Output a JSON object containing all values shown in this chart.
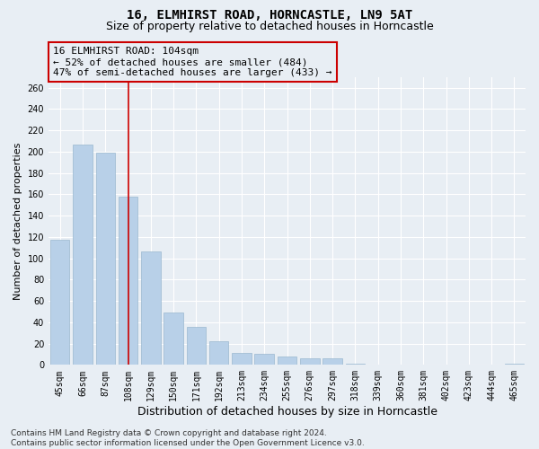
{
  "title": "16, ELMHIRST ROAD, HORNCASTLE, LN9 5AT",
  "subtitle": "Size of property relative to detached houses in Horncastle",
  "xlabel": "Distribution of detached houses by size in Horncastle",
  "ylabel": "Number of detached properties",
  "categories": [
    "45sqm",
    "66sqm",
    "87sqm",
    "108sqm",
    "129sqm",
    "150sqm",
    "171sqm",
    "192sqm",
    "213sqm",
    "234sqm",
    "255sqm",
    "276sqm",
    "297sqm",
    "318sqm",
    "339sqm",
    "360sqm",
    "381sqm",
    "402sqm",
    "423sqm",
    "444sqm",
    "465sqm"
  ],
  "values": [
    117,
    207,
    199,
    158,
    106,
    49,
    36,
    22,
    11,
    10,
    8,
    6,
    6,
    1,
    0,
    0,
    0,
    0,
    0,
    0,
    1
  ],
  "bar_color": "#b8d0e8",
  "bar_edgecolor": "#9ab8d0",
  "vline_index": 3,
  "vline_color": "#cc0000",
  "annotation_line1": "16 ELMHIRST ROAD: 104sqm",
  "annotation_line2": "← 52% of detached houses are smaller (484)",
  "annotation_line3": "47% of semi-detached houses are larger (433) →",
  "annotation_box_edgecolor": "#cc0000",
  "annotation_fontsize": 8,
  "ylim": [
    0,
    270
  ],
  "yticks": [
    0,
    20,
    40,
    60,
    80,
    100,
    120,
    140,
    160,
    180,
    200,
    220,
    240,
    260
  ],
  "footer_text": "Contains HM Land Registry data © Crown copyright and database right 2024.\nContains public sector information licensed under the Open Government Licence v3.0.",
  "background_color": "#e8eef4",
  "grid_color": "#ffffff",
  "title_fontsize": 10,
  "subtitle_fontsize": 9,
  "xlabel_fontsize": 9,
  "ylabel_fontsize": 8,
  "tick_fontsize": 7,
  "footer_fontsize": 6.5
}
